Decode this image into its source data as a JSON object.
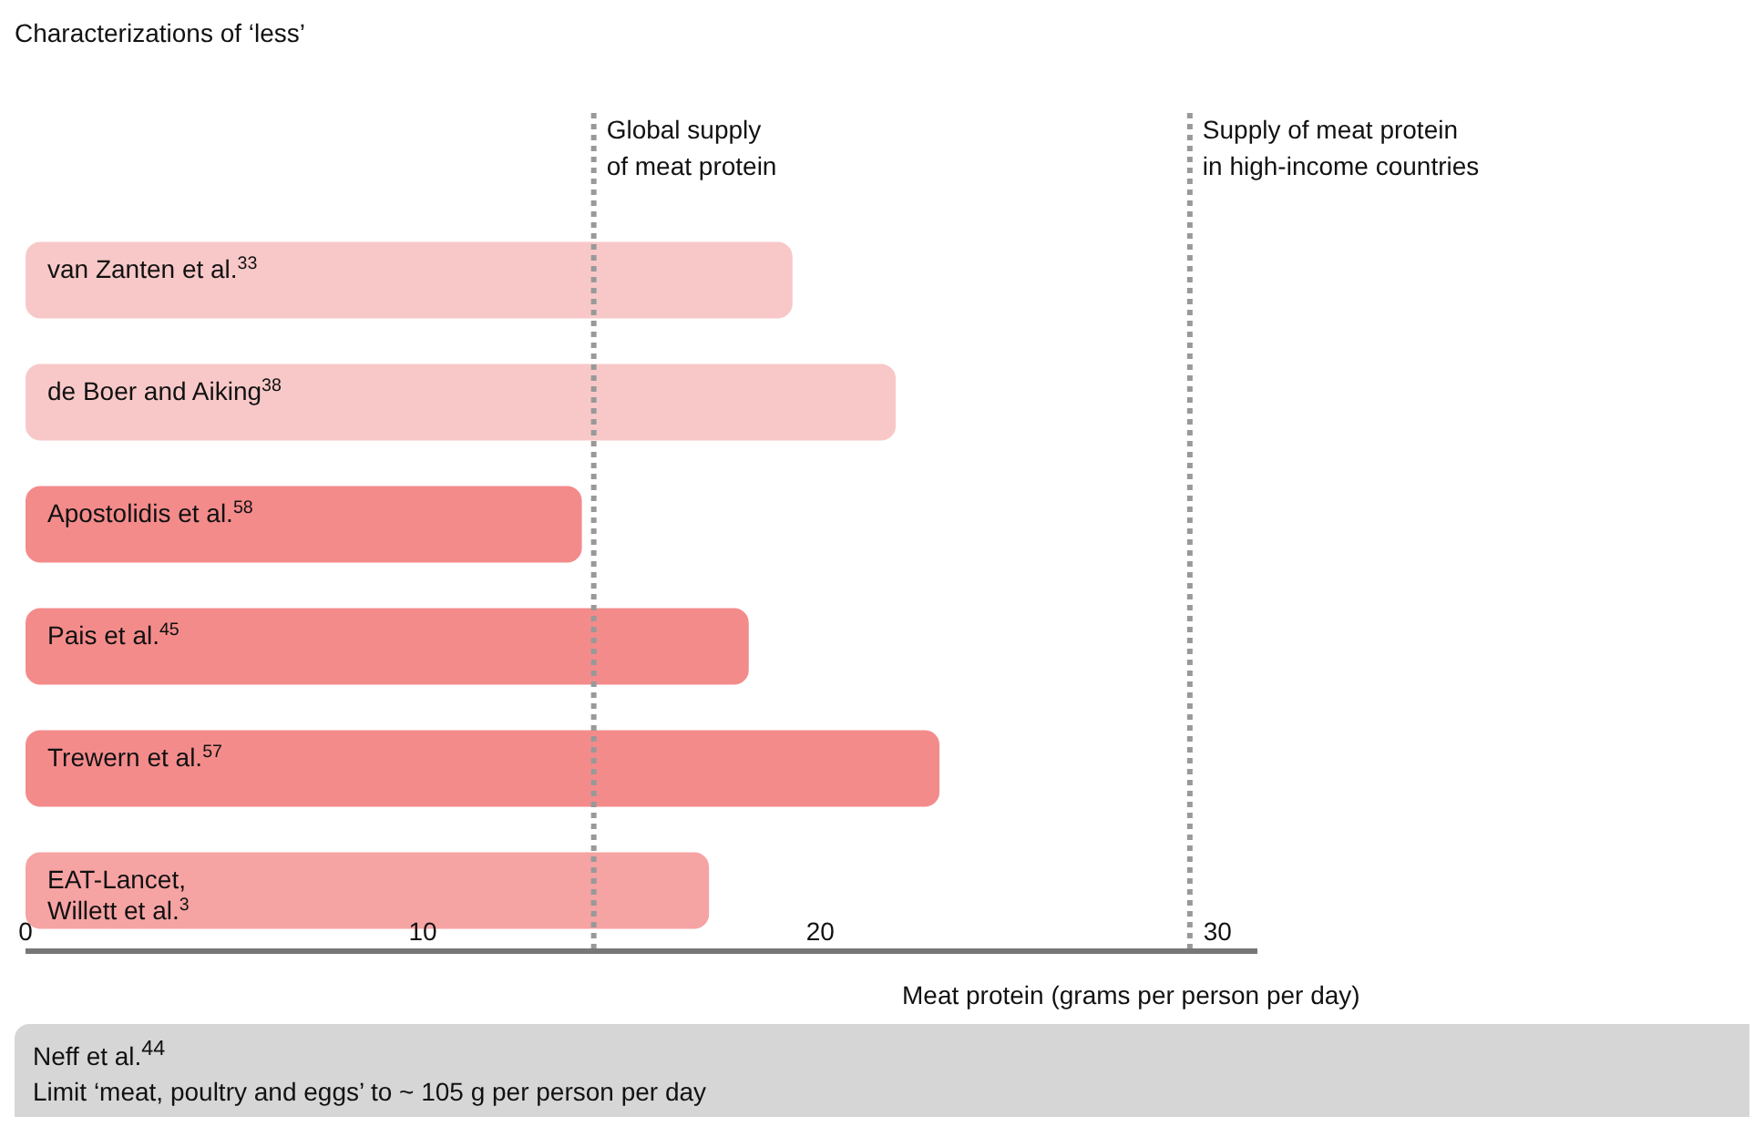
{
  "chart_data": {
    "type": "bar",
    "orientation": "horizontal",
    "title": "Characterizations of ‘less’",
    "xlabel": "Meat protein (grams per person per day)",
    "categories": [
      "van Zanten et al.$^{33}$",
      "de Boer and Aiking$^{38}$",
      "Apostolidis et al.$^{58}$",
      "Pais et al.$^{45}$",
      "Trewern et al.$^{57}$",
      "EAT-Lancet,\nWillett et al.$^{3}$"
    ],
    "values": [
      19.3,
      21.9,
      14.0,
      18.2,
      23.0,
      17.2
    ],
    "colors": [
      "#f8c8c8",
      "#f8c8c8",
      "#f48b8b",
      "#f48b8b",
      "#f48b8b",
      "#f6a3a3"
    ],
    "xlim": [
      0,
      31
    ],
    "xticks": [
      0,
      10,
      20,
      30
    ],
    "ref_lines": [
      {
        "axis": "x",
        "value": 14.3,
        "label": "Global supply\nof meat protein",
        "color": "#999999",
        "line_style": "dotted"
      },
      {
        "axis": "x",
        "value": 29.3,
        "label": "Supply of meat protein\nin high-income countries",
        "color": "#999999",
        "line_style": "dotted"
      }
    ],
    "annotations": [
      "Neff et al.$^{44}$",
      "Limit ‘meat, poultry and eggs’ to ~ 105 g per person per day"
    ]
  }
}
